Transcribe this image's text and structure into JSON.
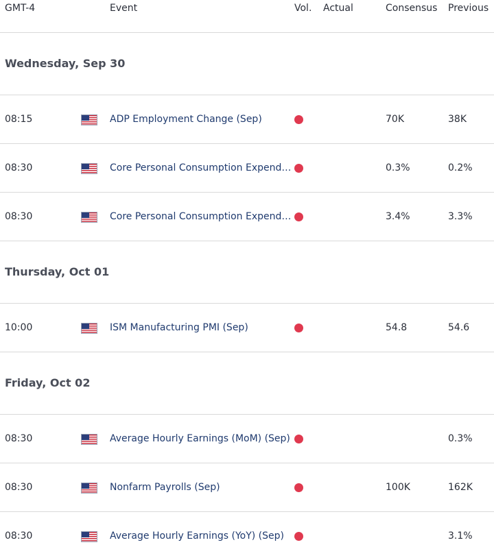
{
  "header": {
    "timezone": "GMT-4",
    "event": "Event",
    "vol": "Vol.",
    "actual": "Actual",
    "consensus": "Consensus",
    "previous": "Previous"
  },
  "days": [
    {
      "label": "Wednesday, Sep 30",
      "events": [
        {
          "time": "08:15",
          "country": "us-flag-icon",
          "name": "ADP Employment Change (Sep)",
          "volatility": "high",
          "actual": "",
          "consensus": "70K",
          "previous": "38K"
        },
        {
          "time": "08:30",
          "country": "us-flag-icon",
          "name": "Core Personal Consumption Expenditure",
          "volatility": "high",
          "actual": "",
          "consensus": "0.3%",
          "previous": "0.2%"
        },
        {
          "time": "08:30",
          "country": "us-flag-icon",
          "name": "Core Personal Consumption Expenditure",
          "volatility": "high",
          "actual": "",
          "consensus": "3.4%",
          "previous": "3.3%"
        }
      ]
    },
    {
      "label": "Thursday, Oct 01",
      "events": [
        {
          "time": "10:00",
          "country": "us-flag-icon",
          "name": "ISM Manufacturing PMI (Sep)",
          "volatility": "high",
          "actual": "",
          "consensus": "54.8",
          "previous": "54.6"
        }
      ]
    },
    {
      "label": "Friday, Oct 02",
      "events": [
        {
          "time": "08:30",
          "country": "us-flag-icon",
          "name": "Average Hourly Earnings (MoM) (Sep)",
          "volatility": "high",
          "actual": "",
          "consensus": "",
          "previous": "0.3%"
        },
        {
          "time": "08:30",
          "country": "us-flag-icon",
          "name": "Nonfarm Payrolls (Sep)",
          "volatility": "high",
          "actual": "",
          "consensus": "100K",
          "previous": "162K"
        },
        {
          "time": "08:30",
          "country": "us-flag-icon",
          "name": "Average Hourly Earnings (YoY) (Sep)",
          "volatility": "high",
          "actual": "",
          "consensus": "",
          "previous": "3.1%"
        }
      ]
    }
  ],
  "colors": {
    "volatility_high": "#e0394f",
    "event_text": "#1f3a6e",
    "divider": "#d9d9d9"
  }
}
